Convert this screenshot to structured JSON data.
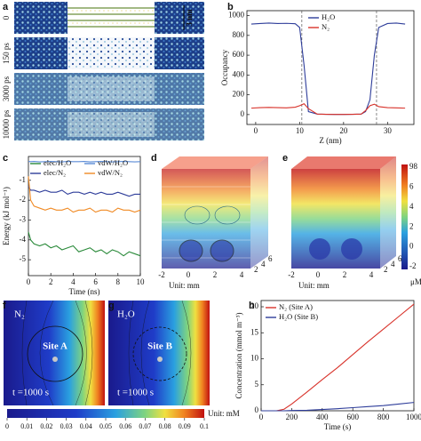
{
  "panels": {
    "a": {
      "label": "a",
      "snapshots": [
        "0",
        "150 ps",
        "3000 ps",
        "10000 ps"
      ],
      "scale_bar": "3 nm"
    },
    "d": {
      "label": "d",
      "unit": "Unit: mm",
      "xticks": [
        -2,
        0,
        2,
        4
      ],
      "zticks": [
        2,
        4,
        6
      ]
    },
    "e": {
      "label": "e",
      "unit": "Unit: mm",
      "xticks": [
        -2,
        0,
        2,
        4
      ],
      "zticks": [
        2,
        4,
        6
      ]
    },
    "de_colorbar": {
      "ticks": [
        98,
        6,
        4,
        2,
        0,
        -2
      ],
      "unit": "μM"
    },
    "f": {
      "label": "f",
      "species": "N₂",
      "site": "Site A",
      "time": "t =1000 s"
    },
    "g": {
      "label": "g",
      "species": "H₂O",
      "site": "Site B",
      "time": "t =1000 s"
    },
    "fg_colorbar": {
      "lim": [
        0,
        0.1
      ],
      "ticks": [
        0,
        0.01,
        0.02,
        0.03,
        0.04,
        0.05,
        0.06,
        0.07,
        0.08,
        0.09,
        0.1
      ],
      "unit": "Unit: mM"
    }
  },
  "chart_data": [
    {
      "type": "line",
      "label": "b",
      "xlabel": "Z (nm)",
      "ylabel": "Occupancy",
      "xlim": [
        -2,
        36
      ],
      "ylim": [
        -100,
        1050
      ],
      "xticks": [
        0,
        10,
        20,
        30
      ],
      "yticks": [
        0,
        200,
        400,
        600,
        800,
        1000
      ],
      "vlines": [
        10.5,
        27.5
      ],
      "legend_loc": "upper center",
      "legend_columns": 1,
      "x": [
        -1,
        1,
        3,
        5,
        7,
        9,
        10,
        11,
        12,
        14,
        16,
        18,
        20,
        22,
        24,
        25,
        26,
        27,
        28,
        30,
        32,
        34
      ],
      "series": [
        {
          "name": "H₂O",
          "color": "#2e3d9a",
          "values": [
            915,
            920,
            925,
            920,
            922,
            918,
            880,
            500,
            30,
            5,
            3,
            2,
            2,
            3,
            5,
            30,
            150,
            600,
            880,
            920,
            925,
            915
          ]
        },
        {
          "name": "N₂",
          "color": "#d8322a",
          "values": [
            65,
            70,
            72,
            70,
            68,
            75,
            90,
            110,
            60,
            5,
            3,
            2,
            2,
            3,
            5,
            40,
            90,
            105,
            80,
            70,
            68,
            65
          ]
        }
      ]
    },
    {
      "type": "line",
      "label": "c",
      "xlabel": "Time (ns)",
      "ylabel": "Energy (kJ mol⁻¹)",
      "xlim": [
        0,
        10
      ],
      "ylim": [
        -5.8,
        0.2
      ],
      "xticks": [
        0,
        2,
        4,
        6,
        8,
        10
      ],
      "yticks": [
        -1,
        -2,
        -3,
        -4,
        -5
      ],
      "legend_loc": "upper right",
      "legend_columns": 2,
      "x": [
        0,
        0.2,
        0.5,
        1,
        1.5,
        2,
        2.5,
        3,
        3.5,
        4,
        4.5,
        5,
        5.5,
        6,
        6.5,
        7,
        7.5,
        8,
        8.5,
        9,
        9.5,
        10
      ],
      "series": [
        {
          "name": "elec/H₂O",
          "color": "#2a8a3a",
          "values": [
            -3.6,
            -4.0,
            -4.2,
            -4.3,
            -4.2,
            -4.4,
            -4.3,
            -4.5,
            -4.4,
            -4.3,
            -4.6,
            -4.5,
            -4.4,
            -4.6,
            -4.5,
            -4.7,
            -4.5,
            -4.6,
            -4.8,
            -4.6,
            -4.7,
            -4.8
          ]
        },
        {
          "name": "elec/N₂",
          "color": "#2e3d9a",
          "values": [
            -1.3,
            -1.5,
            -1.5,
            -1.6,
            -1.5,
            -1.6,
            -1.6,
            -1.5,
            -1.7,
            -1.6,
            -1.6,
            -1.7,
            -1.6,
            -1.7,
            -1.6,
            -1.7,
            -1.7,
            -1.6,
            -1.7,
            -1.8,
            -1.7,
            -1.7
          ]
        },
        {
          "name": "vdW/H₂O",
          "color": "#5b8bd6",
          "values": [
            -0.05,
            -0.06,
            -0.05,
            -0.07,
            -0.06,
            -0.05,
            -0.06,
            -0.07,
            -0.05,
            -0.06,
            -0.06,
            -0.05,
            -0.07,
            -0.06,
            -0.05,
            -0.06,
            -0.07,
            -0.06,
            -0.05,
            -0.06,
            -0.07,
            -0.06
          ]
        },
        {
          "name": "vdW/N₂",
          "color": "#f08a24",
          "values": [
            -0.8,
            -2.0,
            -2.3,
            -2.4,
            -2.5,
            -2.4,
            -2.5,
            -2.5,
            -2.4,
            -2.6,
            -2.5,
            -2.5,
            -2.4,
            -2.6,
            -2.5,
            -2.5,
            -2.6,
            -2.4,
            -2.5,
            -2.5,
            -2.6,
            -2.5
          ]
        }
      ]
    },
    {
      "type": "line",
      "label": "h",
      "xlabel": "Time (s)",
      "ylabel": "Concentration (mmol m⁻³)",
      "xlim": [
        0,
        1000
      ],
      "ylim": [
        0,
        21.2
      ],
      "xticks": [
        0,
        200,
        400,
        600,
        800,
        1000
      ],
      "yticks": [
        0,
        5,
        10,
        15,
        20
      ],
      "legend_loc": "upper left",
      "legend_columns": 1,
      "x": [
        0,
        100,
        150,
        200,
        300,
        400,
        500,
        600,
        700,
        800,
        900,
        1000
      ],
      "series": [
        {
          "name": "N₂ (Site A)",
          "color": "#d8322a",
          "values": [
            0,
            0,
            0.3,
            1.3,
            3.6,
            6,
            8.3,
            10.8,
            13.3,
            15.7,
            18.1,
            20.5
          ]
        },
        {
          "name": "H₂O (Site B)",
          "color": "#2e3d9a",
          "values": [
            0,
            0,
            0,
            0.05,
            0.1,
            0.25,
            0.4,
            0.6,
            0.8,
            1.0,
            1.3,
            1.6
          ]
        }
      ]
    }
  ]
}
